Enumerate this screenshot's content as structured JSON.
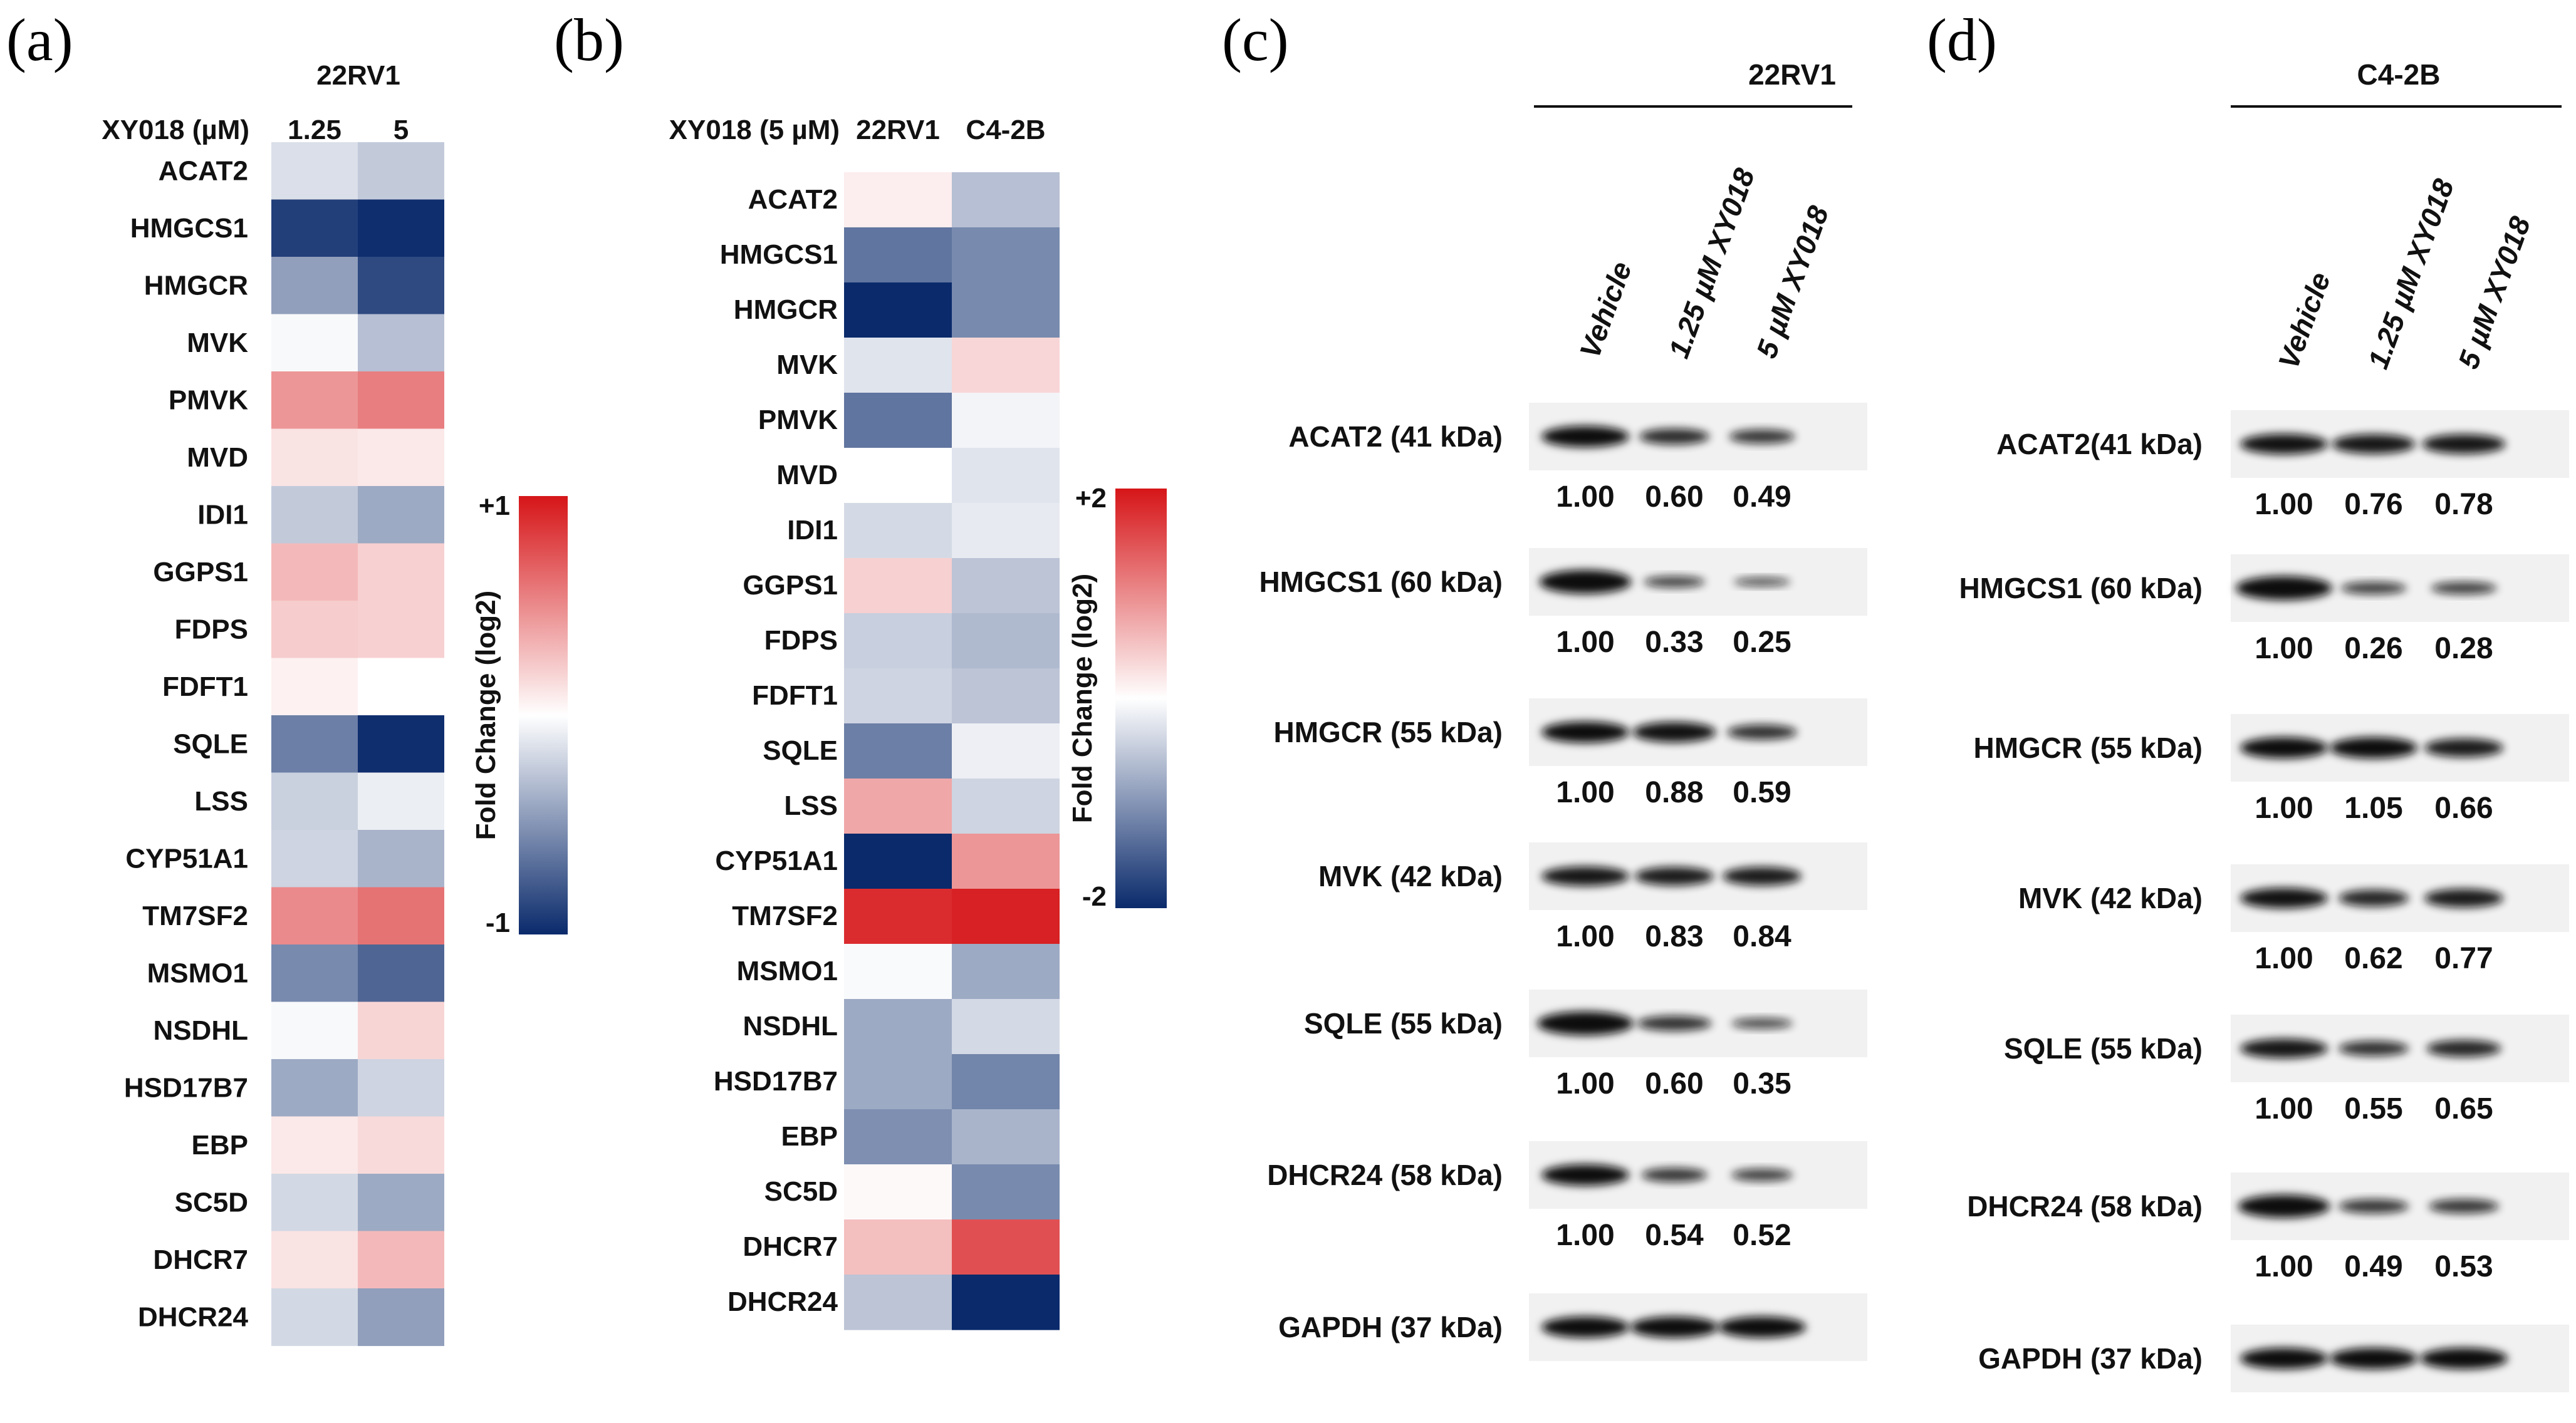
{
  "panels": {
    "a": {
      "letter": "(a)",
      "header": "22RV1",
      "axis_label": "XY018 (µM)",
      "columns": [
        "1.25",
        "5"
      ],
      "genes": [
        "ACAT2",
        "HMGCS1",
        "HMGCR",
        "MVK",
        "PMVK",
        "MVD",
        "IDI1",
        "GGPS1",
        "FDPS",
        "FDFT1",
        "SQLE",
        "LSS",
        "CYP51A1",
        "TM7SF2",
        "MSMO1",
        "NSDHL",
        "HSD17B7",
        "EBP",
        "SC5D",
        "DHCR7",
        "DHCR24"
      ],
      "colorbar": {
        "max_label": "+1",
        "min_label": "-1",
        "title": "Fold Change (log2)"
      }
    },
    "b": {
      "letter": "(b)",
      "axis_label": "XY018 (5 µM)",
      "columns": [
        "22RV1",
        "C4-2B"
      ],
      "genes": [
        "ACAT2",
        "HMGCS1",
        "HMGCR",
        "MVK",
        "PMVK",
        "MVD",
        "IDI1",
        "GGPS1",
        "FDPS",
        "FDFT1",
        "SQLE",
        "LSS",
        "CYP51A1",
        "TM7SF2",
        "MSMO1",
        "NSDHL",
        "HSD17B7",
        "EBP",
        "SC5D",
        "DHCR7",
        "DHCR24"
      ],
      "colorbar": {
        "max_label": "+2",
        "min_label": "-2",
        "title": "Fold Change (log2)"
      }
    },
    "c": {
      "letter": "(c)",
      "cell_line": "22RV1",
      "lanes": [
        "Vehicle",
        "1.25 µM XY018",
        "5 µM XY018"
      ],
      "blots": [
        {
          "label": "ACAT2 (41 kDa)",
          "values": [
            "1.00",
            "0.60",
            "0.49"
          ]
        },
        {
          "label": "HMGCS1 (60 kDa)",
          "values": [
            "1.00",
            "0.33",
            "0.25"
          ]
        },
        {
          "label": "HMGCR (55 kDa)",
          "values": [
            "1.00",
            "0.88",
            "0.59"
          ]
        },
        {
          "label": "MVK (42 kDa)",
          "values": [
            "1.00",
            "0.83",
            "0.84"
          ]
        },
        {
          "label": "SQLE (55 kDa)",
          "values": [
            "1.00",
            "0.60",
            "0.35"
          ]
        },
        {
          "label": "DHCR24 (58 kDa)",
          "values": [
            "1.00",
            "0.54",
            "0.52"
          ]
        },
        {
          "label": "GAPDH (37 kDa)",
          "values": []
        }
      ]
    },
    "d": {
      "letter": "(d)",
      "cell_line": "C4-2B",
      "lanes": [
        "Vehicle",
        "1.25 µM XY018",
        "5 µM XY018"
      ],
      "blots": [
        {
          "label": "ACAT2(41 kDa)",
          "values": [
            "1.00",
            "0.76",
            "0.78"
          ]
        },
        {
          "label": "HMGCS1 (60 kDa)",
          "values": [
            "1.00",
            "0.26",
            "0.28"
          ]
        },
        {
          "label": "HMGCR (55 kDa)",
          "values": [
            "1.00",
            "1.05",
            "0.66"
          ]
        },
        {
          "label": "MVK (42 kDa)",
          "values": [
            "1.00",
            "0.62",
            "0.77"
          ]
        },
        {
          "label": "SQLE (55 kDa)",
          "values": [
            "1.00",
            "0.55",
            "0.65"
          ]
        },
        {
          "label": "DHCR24 (58 kDa)",
          "values": [
            "1.00",
            "0.49",
            "0.53"
          ]
        },
        {
          "label": "GAPDH (37 kDa)",
          "values": []
        }
      ]
    }
  },
  "chart_data": [
    {
      "type": "heatmap",
      "panel": "a",
      "title": "22RV1",
      "xlabel": "XY018 (µM)",
      "ylabel": "",
      "x": [
        "1.25",
        "5"
      ],
      "y": [
        "ACAT2",
        "HMGCS1",
        "HMGCR",
        "MVK",
        "PMVK",
        "MVD",
        "IDI1",
        "GGPS1",
        "FDPS",
        "FDFT1",
        "SQLE",
        "LSS",
        "CYP51A1",
        "TM7SF2",
        "MSMO1",
        "NSDHL",
        "HSD17B7",
        "EBP",
        "SC5D",
        "DHCR7",
        "DHCR24"
      ],
      "values": [
        [
          -0.15,
          -0.25
        ],
        [
          -0.9,
          -0.98
        ],
        [
          -0.45,
          -0.85
        ],
        [
          -0.03,
          -0.3
        ],
        [
          0.45,
          0.55
        ],
        [
          0.12,
          0.1
        ],
        [
          -0.25,
          -0.4
        ],
        [
          0.3,
          0.2
        ],
        [
          0.22,
          0.2
        ],
        [
          0.06,
          0.0
        ],
        [
          -0.6,
          -0.98
        ],
        [
          -0.22,
          -0.08
        ],
        [
          -0.2,
          -0.35
        ],
        [
          0.5,
          0.6
        ],
        [
          -0.55,
          -0.72
        ],
        [
          -0.03,
          0.18
        ],
        [
          -0.4,
          -0.2
        ],
        [
          0.1,
          0.16
        ],
        [
          -0.18,
          -0.4
        ],
        [
          0.12,
          0.3
        ],
        [
          -0.18,
          -0.45
        ]
      ],
      "zlim": [
        -1,
        1
      ],
      "colorbar_label": "Fold Change (log2)"
    },
    {
      "type": "heatmap",
      "panel": "b",
      "title": "",
      "xlabel": "XY018 (5 µM)",
      "ylabel": "",
      "x": [
        "22RV1",
        "C4-2B"
      ],
      "y": [
        "ACAT2",
        "HMGCS1",
        "HMGCR",
        "MVK",
        "PMVK",
        "MVD",
        "IDI1",
        "GGPS1",
        "FDPS",
        "FDFT1",
        "SQLE",
        "LSS",
        "CYP51A1",
        "TM7SF2",
        "MSMO1",
        "NSDHL",
        "HSD17B7",
        "EBP",
        "SC5D",
        "DHCR7",
        "DHCR24"
      ],
      "values": [
        [
          0.15,
          -0.6
        ],
        [
          -1.3,
          -1.1
        ],
        [
          -2.0,
          -1.1
        ],
        [
          -0.25,
          0.35
        ],
        [
          -1.3,
          -0.1
        ],
        [
          0.0,
          -0.25
        ],
        [
          -0.35,
          -0.2
        ],
        [
          0.4,
          -0.55
        ],
        [
          -0.45,
          -0.65
        ],
        [
          -0.4,
          -0.55
        ],
        [
          -1.2,
          -0.15
        ],
        [
          0.75,
          -0.4
        ],
        [
          -2.0,
          0.9
        ],
        [
          1.8,
          1.9
        ],
        [
          -0.05,
          -0.8
        ],
        [
          -0.8,
          -0.35
        ],
        [
          -0.8,
          -1.15
        ],
        [
          -1.05,
          -0.7
        ],
        [
          0.05,
          -1.1
        ],
        [
          0.55,
          1.5
        ],
        [
          -0.55,
          -2.0
        ]
      ],
      "zlim": [
        -2,
        2
      ],
      "colorbar_label": "Fold Change (log2)"
    }
  ]
}
